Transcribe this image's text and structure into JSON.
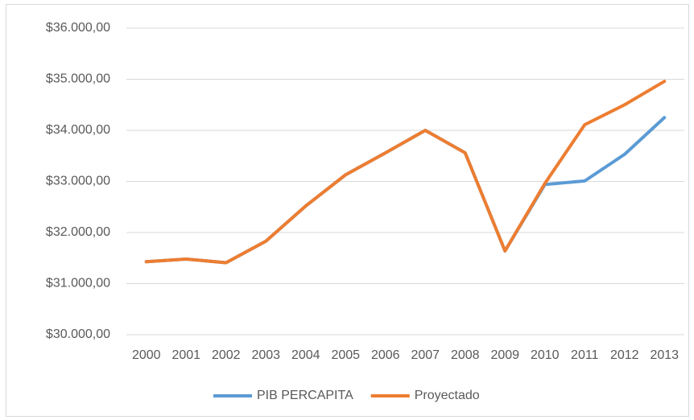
{
  "chart_data": {
    "type": "line",
    "categories": [
      "2000",
      "2001",
      "2002",
      "2003",
      "2004",
      "2005",
      "2006",
      "2007",
      "2008",
      "2009",
      "2010",
      "2011",
      "2012",
      "2013"
    ],
    "series": [
      {
        "name": "PIB PERCAPITA",
        "color": "#5b9bd5",
        "values": [
          31430,
          31480,
          31410,
          31830,
          32520,
          33130,
          33560,
          34000,
          33560,
          31640,
          32940,
          33010,
          33530,
          34250
        ]
      },
      {
        "name": "Proyectado",
        "color": "#ed7d31",
        "values": [
          31430,
          31480,
          31410,
          31830,
          32520,
          33130,
          33560,
          34000,
          33560,
          31640,
          32960,
          34110,
          34500,
          34960
        ]
      }
    ],
    "ylim": [
      30000,
      36000
    ],
    "yticks": [
      {
        "value": 30000,
        "label": "$30.000,00"
      },
      {
        "value": 31000,
        "label": "$31.000,00"
      },
      {
        "value": 32000,
        "label": "$32.000,00"
      },
      {
        "value": 33000,
        "label": "$33.000,00"
      },
      {
        "value": 34000,
        "label": "$34.000,00"
      },
      {
        "value": 35000,
        "label": "$35.000,00"
      },
      {
        "value": 36000,
        "label": "$36.000,00"
      }
    ],
    "grid": true,
    "legend": "bottom"
  }
}
